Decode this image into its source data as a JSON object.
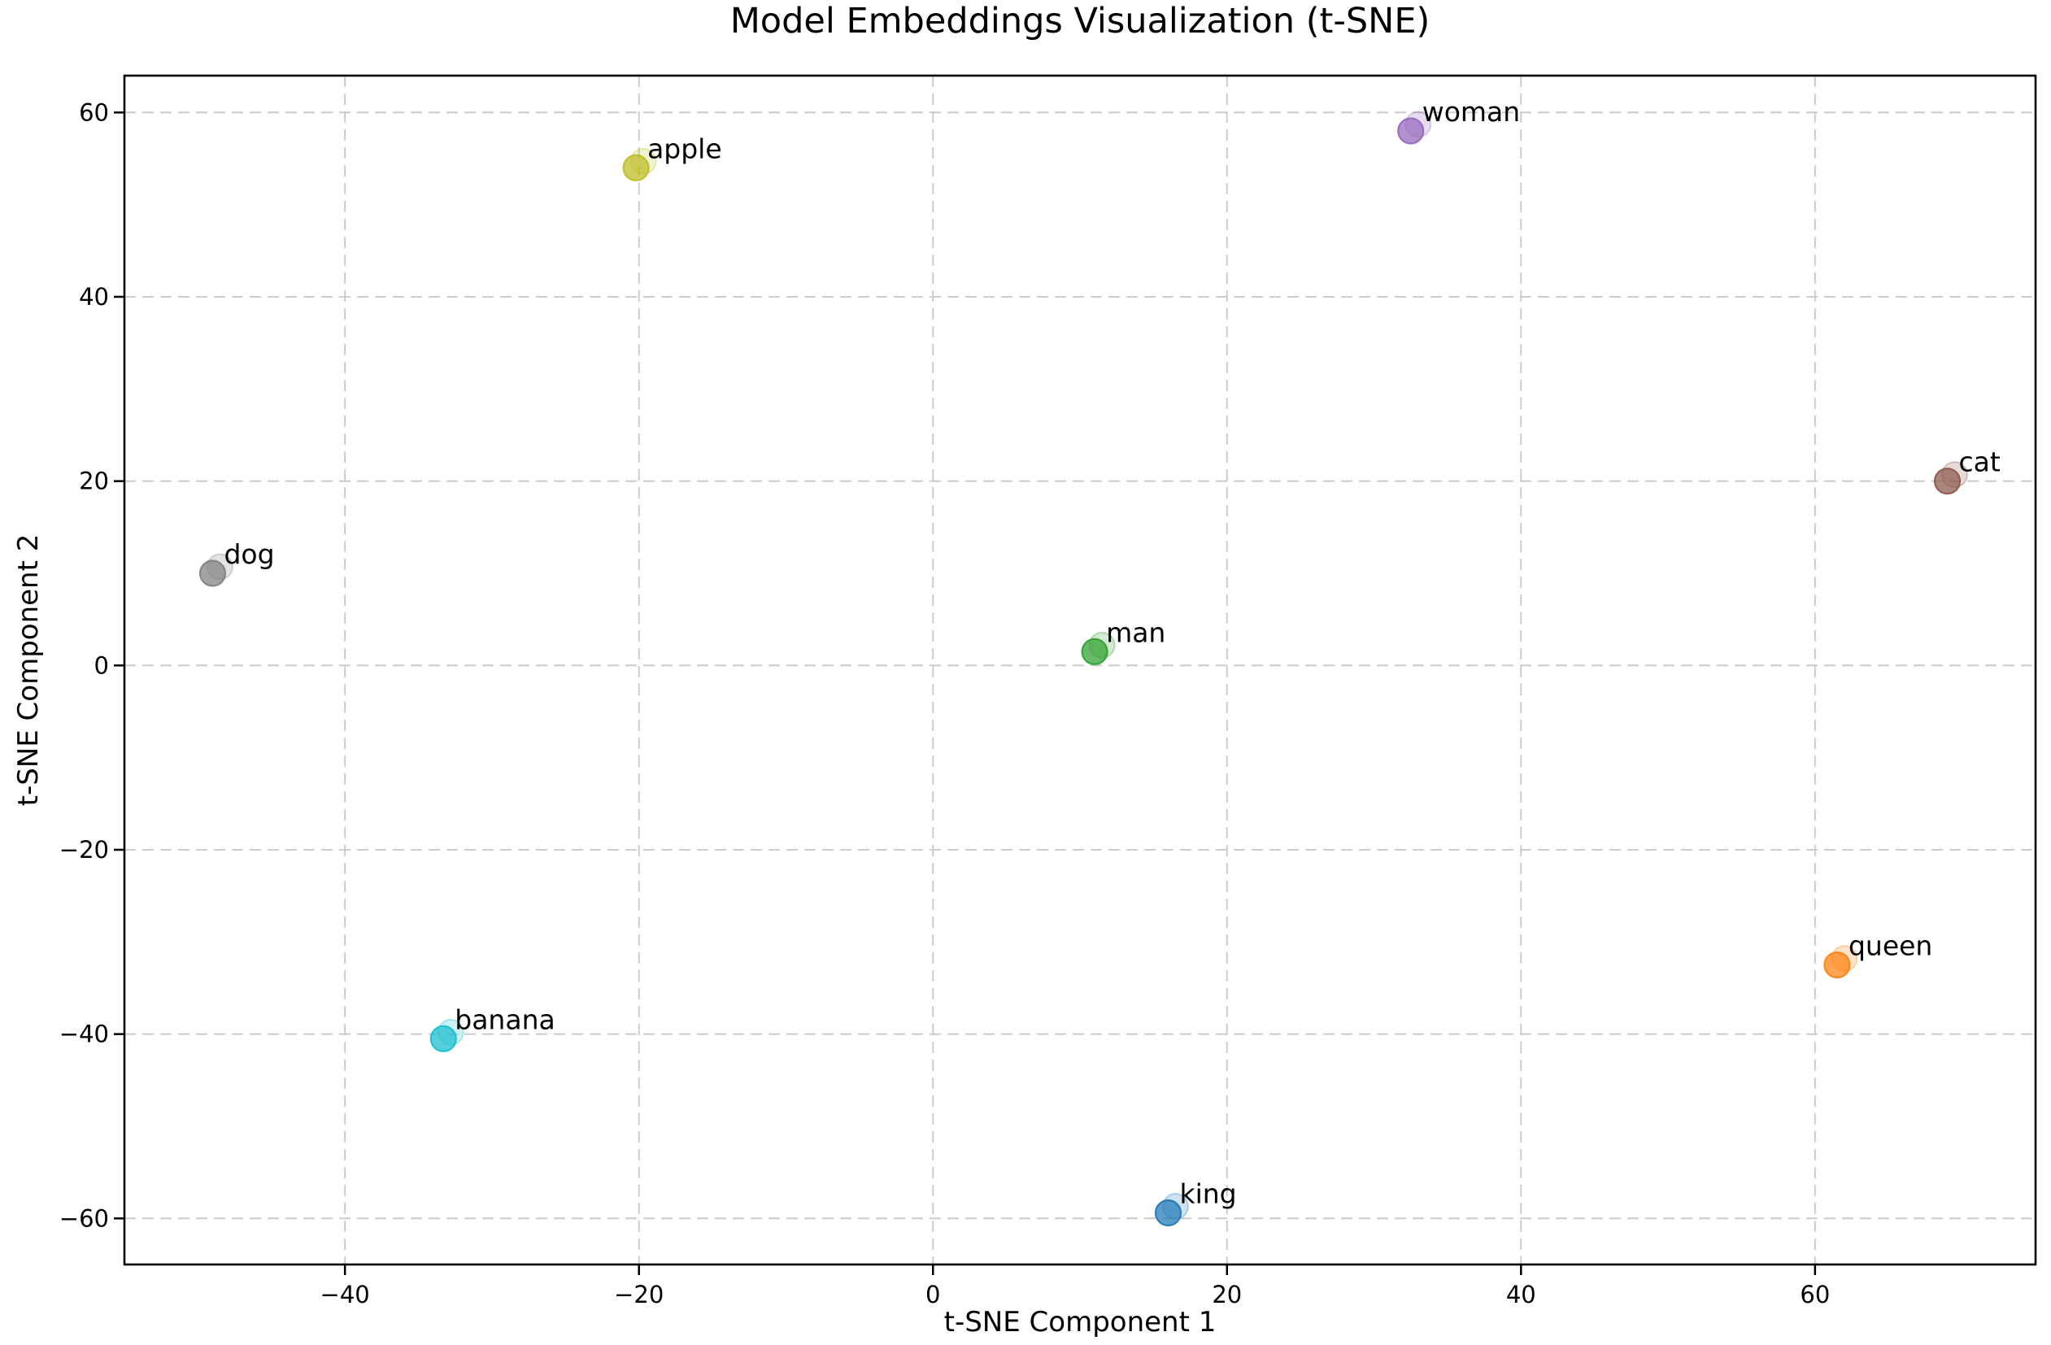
{
  "chart_data": {
    "type": "scatter",
    "title": "Model Embeddings Visualization (t-SNE)",
    "xlabel": "t-SNE Component 1",
    "ylabel": "t-SNE Component 2",
    "xlim": [
      -55,
      75
    ],
    "ylim": [
      -65,
      64
    ],
    "grid": true,
    "grid_style": "dashed",
    "legend": "none",
    "xticks": {
      "values": [
        -40,
        -20,
        0,
        20,
        40,
        60
      ],
      "labels": [
        "−40",
        "−20",
        "0",
        "20",
        "40",
        "60"
      ]
    },
    "yticks": {
      "values": [
        60,
        40,
        20,
        0,
        -20,
        -40,
        -60
      ],
      "labels": [
        "60",
        "40",
        "20",
        "0",
        "−20",
        "−40",
        "−60"
      ]
    },
    "points": [
      {
        "label": "king",
        "x": 16,
        "y": -59.4,
        "color": "#1f77b4"
      },
      {
        "label": "queen",
        "x": 61.5,
        "y": -32.5,
        "color": "#ff7f0e"
      },
      {
        "label": "man",
        "x": 11,
        "y": 1.5,
        "color": "#2ca02c"
      },
      {
        "label": "woman",
        "x": 32.5,
        "y": 58,
        "color": "#9467bd"
      },
      {
        "label": "apple",
        "x": -20.2,
        "y": 54,
        "color": "#bcbd22"
      },
      {
        "label": "banana",
        "x": -33.3,
        "y": -40.5,
        "color": "#17becf"
      },
      {
        "label": "dog",
        "x": -49,
        "y": 10,
        "color": "#7f7f7f"
      },
      {
        "label": "cat",
        "x": 69,
        "y": 20,
        "color": "#8c564b"
      }
    ],
    "style": {
      "background": "#ffffff",
      "grid_color": "#c8c8c8",
      "spine_color": "#000000",
      "text_color": "#000000",
      "marker_fill_opacity": 0.72,
      "marker_edge_opacity": 0.9,
      "ghost_fill_opacity": 0.22,
      "ghost_edge_opacity": 0.3
    }
  }
}
